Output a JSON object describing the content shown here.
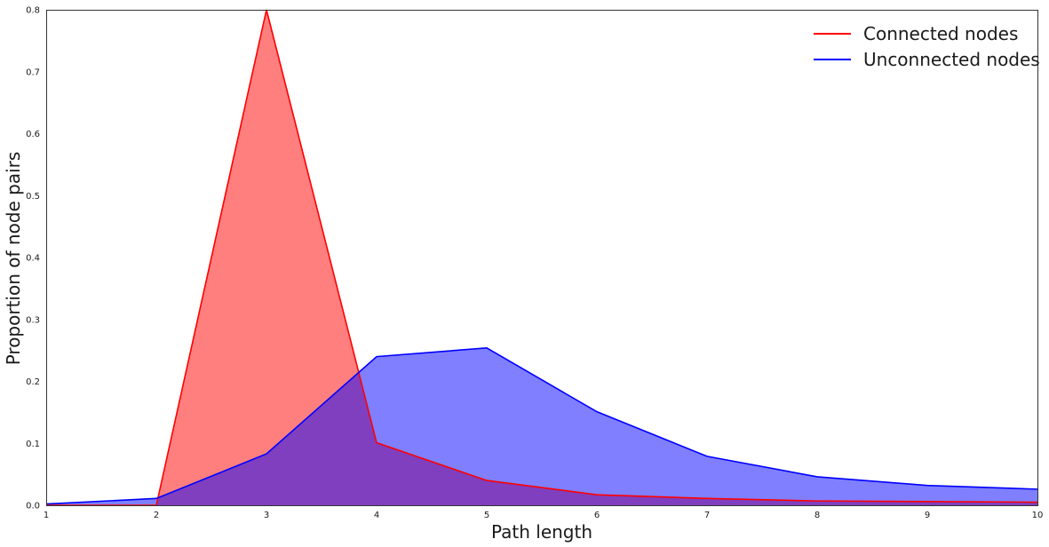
{
  "chart_data": {
    "type": "area",
    "xlabel": "Path length",
    "ylabel": "Proportion of node pairs",
    "xlim": [
      1,
      10
    ],
    "ylim": [
      0,
      0.8
    ],
    "x": [
      1,
      2,
      3,
      4,
      5,
      6,
      7,
      8,
      9,
      10
    ],
    "x_ticks": [
      "1",
      "2",
      "3",
      "4",
      "5",
      "6",
      "7",
      "8",
      "9",
      "10"
    ],
    "y_ticks": [
      "0.0",
      "0.1",
      "0.2",
      "0.3",
      "0.4",
      "0.5",
      "0.6",
      "0.7",
      "0.8"
    ],
    "y_tick_values": [
      0,
      0.1,
      0.2,
      0.3,
      0.4,
      0.5,
      0.6,
      0.7,
      0.8
    ],
    "grid": false,
    "legend_position": "top-right",
    "series": [
      {
        "name": "Connected nodes",
        "color": "#ff0000",
        "fill": "#ff0000",
        "fill_opacity": 0.5,
        "values": [
          0.0,
          0.0,
          0.8,
          0.101,
          0.04,
          0.017,
          0.011,
          0.007,
          0.006,
          0.005
        ]
      },
      {
        "name": "Unconnected nodes",
        "color": "#0000ff",
        "fill": "#0000ff",
        "fill_opacity": 0.5,
        "values": [
          0.002,
          0.011,
          0.083,
          0.24,
          0.254,
          0.151,
          0.079,
          0.046,
          0.032,
          0.026
        ]
      }
    ]
  }
}
